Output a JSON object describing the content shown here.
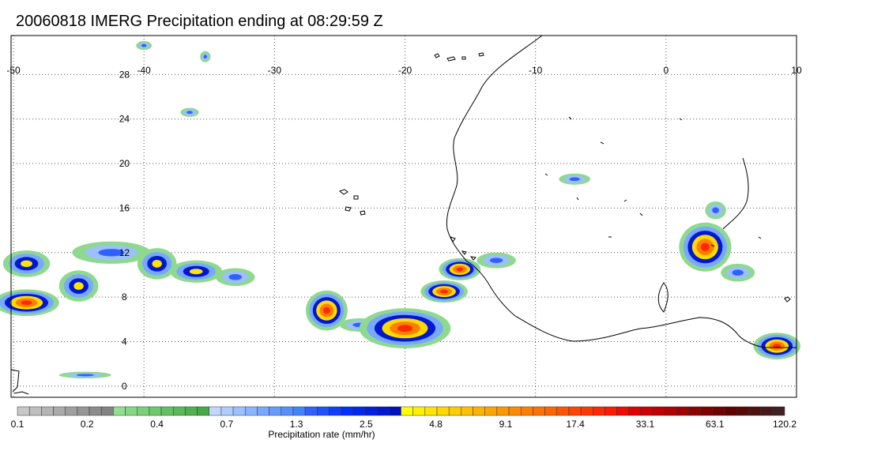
{
  "title": "20060818 IMERG Precipitation ending at 08:29:59 Z",
  "map": {
    "lon_range": [
      -50,
      10
    ],
    "lat_range": [
      -1,
      31.5
    ],
    "lon_ticks": [
      "-50",
      "-40",
      "-30",
      "-20",
      "-10",
      "0",
      "10"
    ],
    "lat_ticks": [
      "28",
      "24",
      "20",
      "16",
      "12",
      "8",
      "4",
      "0"
    ],
    "grid": "dotted",
    "coastline_color": "#000000"
  },
  "precip_cells": [
    {
      "lon": -49.0,
      "lat": 11.0,
      "rx": 1.8,
      "ry": 1.2,
      "level": "moderate"
    },
    {
      "lon": -49.0,
      "lat": 7.5,
      "rx": 2.5,
      "ry": 1.2,
      "level": "heavy"
    },
    {
      "lon": -45.0,
      "lat": 9.0,
      "rx": 1.5,
      "ry": 1.4,
      "level": "moderate"
    },
    {
      "lon": -42.5,
      "lat": 12.0,
      "rx": 3.0,
      "ry": 1.0,
      "level": "light"
    },
    {
      "lon": -39.0,
      "lat": 11.0,
      "rx": 1.5,
      "ry": 1.4,
      "level": "moderate"
    },
    {
      "lon": -36.0,
      "lat": 10.3,
      "rx": 2.0,
      "ry": 1.0,
      "level": "moderate"
    },
    {
      "lon": -33.0,
      "lat": 9.8,
      "rx": 1.5,
      "ry": 0.8,
      "level": "light"
    },
    {
      "lon": -26.0,
      "lat": 6.8,
      "rx": 1.6,
      "ry": 1.8,
      "level": "heavy"
    },
    {
      "lon": -23.5,
      "lat": 5.5,
      "rx": 1.5,
      "ry": 0.6,
      "level": "light"
    },
    {
      "lon": -20.0,
      "lat": 5.2,
      "rx": 3.5,
      "ry": 1.8,
      "level": "heavy"
    },
    {
      "lon": -17.0,
      "lat": 8.5,
      "rx": 1.8,
      "ry": 1.0,
      "level": "heavy"
    },
    {
      "lon": -15.8,
      "lat": 10.5,
      "rx": 1.6,
      "ry": 1.0,
      "level": "heavy"
    },
    {
      "lon": -13.0,
      "lat": 11.3,
      "rx": 1.5,
      "ry": 0.7,
      "level": "light"
    },
    {
      "lon": -7.0,
      "lat": 18.6,
      "rx": 1.2,
      "ry": 0.5,
      "level": "light"
    },
    {
      "lon": 3.0,
      "lat": 12.5,
      "rx": 2.0,
      "ry": 2.2,
      "level": "heavy"
    },
    {
      "lon": 3.8,
      "lat": 15.8,
      "rx": 0.8,
      "ry": 0.8,
      "level": "light"
    },
    {
      "lon": 5.5,
      "lat": 10.2,
      "rx": 1.3,
      "ry": 0.8,
      "level": "light"
    },
    {
      "lon": 8.5,
      "lat": 3.6,
      "rx": 1.8,
      "ry": 1.2,
      "level": "heavy"
    },
    {
      "lon": -36.5,
      "lat": 24.6,
      "rx": 0.7,
      "ry": 0.4,
      "level": "light"
    },
    {
      "lon": -35.3,
      "lat": 29.6,
      "rx": 0.4,
      "ry": 0.5,
      "level": "light"
    },
    {
      "lon": -40.0,
      "lat": 30.6,
      "rx": 0.6,
      "ry": 0.4,
      "level": "light"
    },
    {
      "lon": -44.5,
      "lat": 1.0,
      "rx": 2.0,
      "ry": 0.3,
      "level": "light"
    }
  ],
  "colorbar": {
    "colors": [
      "#c8c8c8",
      "#bebebe",
      "#b4b4b4",
      "#aaaaaa",
      "#a0a0a0",
      "#969696",
      "#8c8c8c",
      "#828282",
      "#8fe08f",
      "#84d884",
      "#79d079",
      "#6ec86e",
      "#64c064",
      "#5ab85a",
      "#50b050",
      "#46a846",
      "#c0d8ff",
      "#aeccff",
      "#9cc0ff",
      "#8ab4ff",
      "#78a8ff",
      "#669cff",
      "#5490ff",
      "#4284ff",
      "#3060ff",
      "#2050ff",
      "#1040ff",
      "#0030ff",
      "#0028f0",
      "#0020e0",
      "#0018d0",
      "#0010c0",
      "#ffff00",
      "#fff000",
      "#ffe400",
      "#ffd800",
      "#ffcc00",
      "#ffbf00",
      "#ffb200",
      "#ffa500",
      "#ff9800",
      "#ff8b00",
      "#ff7e00",
      "#ff7100",
      "#ff6400",
      "#ff5500",
      "#ff4600",
      "#ff3700",
      "#ff2800",
      "#ff1900",
      "#f00a00",
      "#e00000",
      "#d00000",
      "#c00000",
      "#b00000",
      "#a00000",
      "#900000",
      "#800000",
      "#700000",
      "#600000",
      "#580808",
      "#501010",
      "#481818",
      "#402020"
    ],
    "tick_labels": [
      "0.1",
      "0.2",
      "0.4",
      "0.7",
      "1.3",
      "2.5",
      "4.8",
      "9.1",
      "17.4",
      "33.1",
      "63.1",
      "120.2"
    ],
    "label": "Precipitation rate (mm/hr)"
  }
}
